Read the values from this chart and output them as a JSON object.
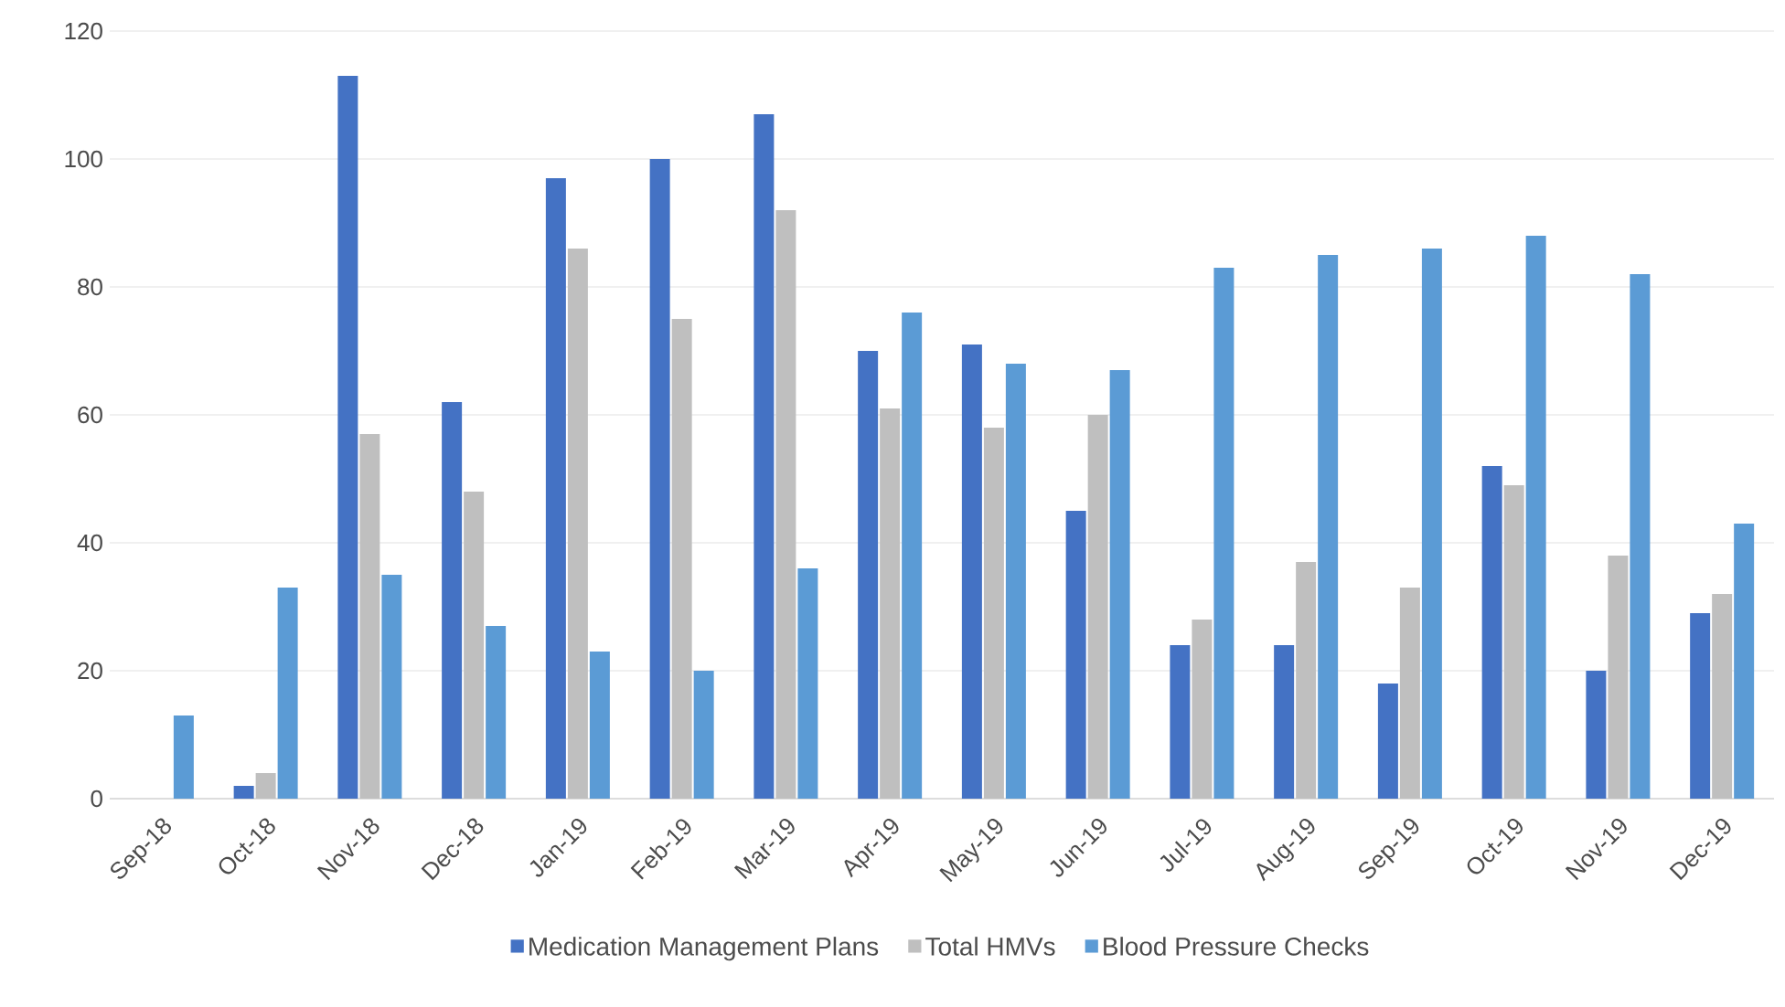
{
  "chart_data": {
    "type": "bar",
    "categories": [
      "Sep-18",
      "Oct-18",
      "Nov-18",
      "Dec-18",
      "Jan-19",
      "Feb-19",
      "Mar-19",
      "Apr-19",
      "May-19",
      "Jun-19",
      "Jul-19",
      "Aug-19",
      "Sep-19",
      "Oct-19",
      "Nov-19",
      "Dec-19"
    ],
    "series": [
      {
        "name": "Medication Management Plans",
        "color": "#4472c4",
        "values": [
          0,
          2,
          113,
          62,
          97,
          100,
          107,
          70,
          71,
          45,
          24,
          24,
          18,
          52,
          20,
          29
        ]
      },
      {
        "name": "Total HMVs",
        "color": "#bfbfbf",
        "values": [
          0,
          4,
          57,
          48,
          86,
          75,
          92,
          61,
          58,
          60,
          28,
          37,
          33,
          49,
          38,
          32
        ]
      },
      {
        "name": "Blood Pressure Checks",
        "color": "#5b9bd5",
        "values": [
          13,
          33,
          35,
          27,
          23,
          20,
          36,
          76,
          68,
          67,
          83,
          85,
          86,
          88,
          82,
          43
        ]
      }
    ],
    "ylim": [
      0,
      120
    ],
    "yticks": [
      0,
      20,
      40,
      60,
      80,
      100,
      120
    ],
    "grid": "y",
    "legend": "bottom"
  }
}
